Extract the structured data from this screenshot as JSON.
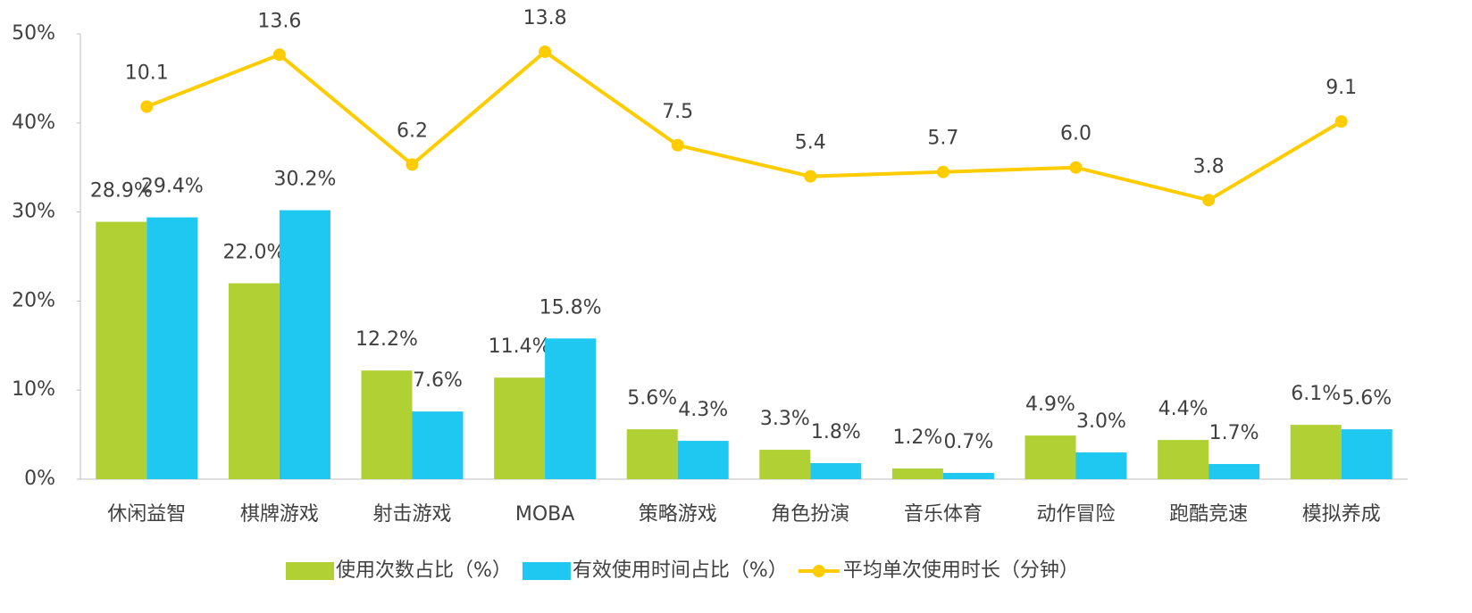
{
  "chart_data": {
    "type": "bar_line",
    "categories": [
      "休闲益智",
      "棋牌游戏",
      "射击游戏",
      "MOBA",
      "策略游戏",
      "角色扮演",
      "音乐体育",
      "动作冒险",
      "跑酷竞速",
      "模拟养成"
    ],
    "series": [
      {
        "name": "使用次数占比（%）",
        "type": "bar",
        "color": "#b0d034",
        "values": [
          28.9,
          22.0,
          12.2,
          11.4,
          5.6,
          3.3,
          1.2,
          4.9,
          4.4,
          6.1
        ],
        "value_labels": [
          "28.9%",
          "22.0%",
          "12.2%",
          "11.4%",
          "5.6%",
          "3.3%",
          "1.2%",
          "4.9%",
          "4.4%",
          "6.1%"
        ]
      },
      {
        "name": "有效使用时间占比（%）",
        "type": "bar",
        "color": "#1ec8f0",
        "values": [
          29.4,
          30.2,
          7.6,
          15.8,
          4.3,
          1.8,
          0.7,
          3.0,
          1.7,
          5.6
        ],
        "value_labels": [
          "29.4%",
          "30.2%",
          "7.6%",
          "15.8%",
          "4.3%",
          "1.8%",
          "0.7%",
          "3.0%",
          "1.7%",
          "5.6%"
        ]
      },
      {
        "name": "平均单次使用时长（分钟）",
        "type": "line",
        "axis": "y2",
        "color": "#ffcc00",
        "values": [
          10.1,
          13.6,
          6.2,
          13.8,
          7.5,
          5.4,
          5.7,
          6.0,
          3.8,
          9.1
        ],
        "value_labels": [
          "10.1",
          "13.6",
          "6.2",
          "13.8",
          "7.5",
          "5.4",
          "5.7",
          "6.0",
          "3.8",
          "9.1"
        ]
      }
    ],
    "ylim": [
      0,
      50
    ],
    "yticks": [
      {
        "value": 0,
        "label": "0%"
      },
      {
        "value": 10,
        "label": "10%"
      },
      {
        "value": 20,
        "label": "20%"
      },
      {
        "value": 30,
        "label": "30%"
      },
      {
        "value": 40,
        "label": "40%"
      },
      {
        "value": 50,
        "label": "50%"
      }
    ],
    "y2lim": [
      -15,
      15
    ],
    "legend": "bottom"
  }
}
